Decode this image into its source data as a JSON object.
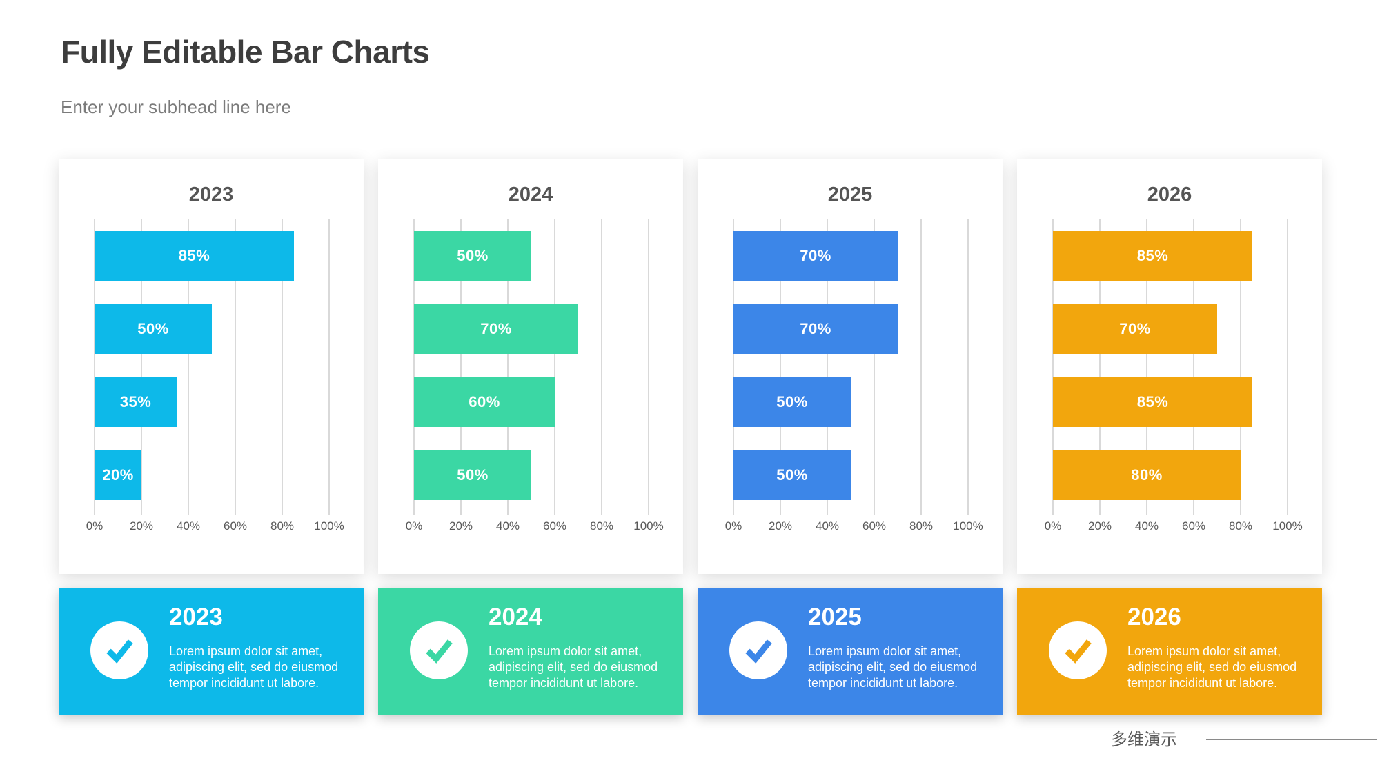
{
  "page": {
    "title": "Fully Editable Bar Charts",
    "subhead": "Enter your subhead line here",
    "footer_brand": "多维演示"
  },
  "colors": {
    "cyan": "#0DB9E9",
    "green": "#3BD7A4",
    "blue": "#3C86E8",
    "orange": "#F2A60D",
    "gridline": "#d9d9d9",
    "axis_text": "#595959",
    "title_text": "#3d3d3d",
    "subhead_text": "#7b7b7b",
    "panel_title_text": "#555555"
  },
  "chart_data": [
    {
      "type": "bar",
      "orientation": "horizontal",
      "title": "2023",
      "color": "#0DB9E9",
      "values": [
        85,
        50,
        35,
        20
      ],
      "data_labels": [
        "85%",
        "50%",
        "35%",
        "20%"
      ],
      "xlim": [
        0,
        100
      ],
      "xticks": [
        0,
        20,
        40,
        60,
        80,
        100
      ],
      "xtick_labels": [
        "0%",
        "20%",
        "40%",
        "60%",
        "80%",
        "100%"
      ],
      "xlabel": "",
      "ylabel": "",
      "grid": true,
      "legend": false
    },
    {
      "type": "bar",
      "orientation": "horizontal",
      "title": "2024",
      "color": "#3BD7A4",
      "values": [
        50,
        70,
        60,
        50
      ],
      "data_labels": [
        "50%",
        "70%",
        "60%",
        "50%"
      ],
      "xlim": [
        0,
        100
      ],
      "xticks": [
        0,
        20,
        40,
        60,
        80,
        100
      ],
      "xtick_labels": [
        "0%",
        "20%",
        "40%",
        "60%",
        "80%",
        "100%"
      ],
      "xlabel": "",
      "ylabel": "",
      "grid": true,
      "legend": false
    },
    {
      "type": "bar",
      "orientation": "horizontal",
      "title": "2025",
      "color": "#3C86E8",
      "values": [
        70,
        70,
        50,
        50
      ],
      "data_labels": [
        "70%",
        "70%",
        "50%",
        "50%"
      ],
      "xlim": [
        0,
        100
      ],
      "xticks": [
        0,
        20,
        40,
        60,
        80,
        100
      ],
      "xtick_labels": [
        "0%",
        "20%",
        "40%",
        "60%",
        "80%",
        "100%"
      ],
      "xlabel": "",
      "ylabel": "",
      "grid": true,
      "legend": false
    },
    {
      "type": "bar",
      "orientation": "horizontal",
      "title": "2026",
      "color": "#F2A60D",
      "values": [
        85,
        70,
        85,
        80
      ],
      "data_labels": [
        "85%",
        "70%",
        "85%",
        "80%"
      ],
      "xlim": [
        0,
        100
      ],
      "xticks": [
        0,
        20,
        40,
        60,
        80,
        100
      ],
      "xtick_labels": [
        "0%",
        "20%",
        "40%",
        "60%",
        "80%",
        "100%"
      ],
      "xlabel": "",
      "ylabel": "",
      "grid": true,
      "legend": false
    }
  ],
  "cards": [
    {
      "title": "2023",
      "color": "#0DB9E9",
      "icon": "checkmark-icon",
      "lines": [
        "Lorem ipsum dolor sit amet,",
        "adipiscing elit, sed do eiusmod",
        "tempor incididunt ut labore."
      ]
    },
    {
      "title": "2024",
      "color": "#3BD7A4",
      "icon": "checkmark-icon",
      "lines": [
        "Lorem ipsum dolor sit amet,",
        "adipiscing elit, sed do eiusmod",
        "tempor incididunt ut labore."
      ]
    },
    {
      "title": "2025",
      "color": "#3C86E8",
      "icon": "checkmark-icon",
      "lines": [
        "Lorem ipsum dolor sit amet,",
        "adipiscing elit, sed do eiusmod",
        "tempor incididunt ut labore."
      ]
    },
    {
      "title": "2026",
      "color": "#F2A60D",
      "icon": "checkmark-icon",
      "lines": [
        "Lorem ipsum dolor sit amet,",
        "adipiscing elit, sed do eiusmod",
        "tempor incididunt ut labore."
      ]
    }
  ]
}
